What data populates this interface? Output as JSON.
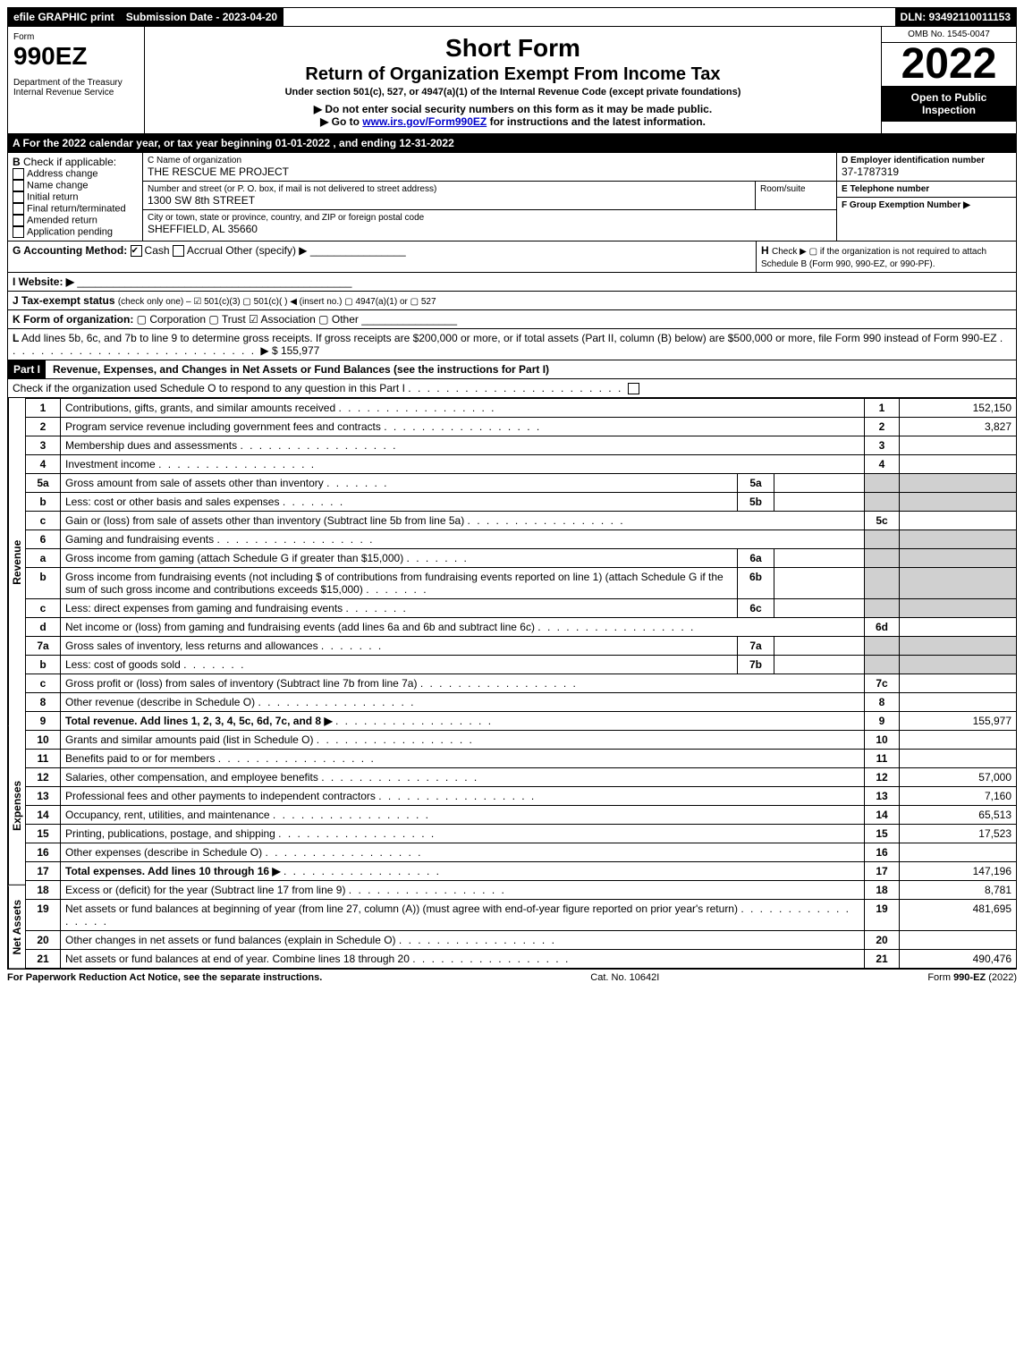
{
  "topbar": {
    "efile": "efile GRAPHIC print",
    "submission_label": "Submission Date - 2023-04-20",
    "dln": "DLN: 93492110011153"
  },
  "header": {
    "form_label": "Form",
    "form_no": "990EZ",
    "dept": "Department of the Treasury",
    "irs": "Internal Revenue Service",
    "short_form": "Short Form",
    "title": "Return of Organization Exempt From Income Tax",
    "subtitle": "Under section 501(c), 527, or 4947(a)(1) of the Internal Revenue Code (except private foundations)",
    "warn": "▶ Do not enter social security numbers on this form as it may be made public.",
    "goto": "▶ Go to www.irs.gov/Form990EZ for instructions and the latest information.",
    "goto_link": "www.irs.gov/Form990EZ",
    "omb": "OMB No. 1545-0047",
    "year": "2022",
    "open": "Open to Public Inspection"
  },
  "sectionA": {
    "text": "A  For the 2022 calendar year, or tax year beginning 01-01-2022 , and ending 12-31-2022"
  },
  "sectionB": {
    "label": "B",
    "check_if": "Check if applicable:",
    "items": [
      "Address change",
      "Name change",
      "Initial return",
      "Final return/terminated",
      "Amended return",
      "Application pending"
    ]
  },
  "sectionC": {
    "label_name": "C Name of organization",
    "name": "THE RESCUE ME PROJECT",
    "label_addr": "Number and street (or P. O. box, if mail is not delivered to street address)",
    "addr": "1300 SW 8th STREET",
    "room_label": "Room/suite",
    "label_city": "City or town, state or province, country, and ZIP or foreign postal code",
    "city": "SHEFFIELD, AL  35660"
  },
  "sectionD": {
    "label": "D Employer identification number",
    "val": "37-1787319"
  },
  "sectionE": {
    "label": "E Telephone number",
    "val": ""
  },
  "sectionF": {
    "label": "F Group Exemption Number  ▶",
    "val": ""
  },
  "sectionG": {
    "label": "G Accounting Method:",
    "cash": "Cash",
    "accrual": "Accrual",
    "other": "Other (specify) ▶"
  },
  "sectionH": {
    "label": "H",
    "text": "Check ▶  ▢  if the organization is not required to attach Schedule B (Form 990, 990-EZ, or 990-PF)."
  },
  "sectionI": {
    "label": "I Website: ▶",
    "val": ""
  },
  "sectionJ": {
    "label": "J Tax-exempt status",
    "text": "(check only one) – ☑ 501(c)(3) ▢ 501(c)(  ) ◀ (insert no.) ▢ 4947(a)(1) or ▢ 527"
  },
  "sectionK": {
    "label": "K Form of organization:",
    "text": "▢ Corporation  ▢ Trust  ☑ Association  ▢ Other"
  },
  "sectionL": {
    "label": "L",
    "text": "Add lines 5b, 6c, and 7b to line 9 to determine gross receipts. If gross receipts are $200,000 or more, or if total assets (Part II, column (B) below) are $500,000 or more, file Form 990 instead of Form 990-EZ",
    "amount": "▶ $ 155,977"
  },
  "part1": {
    "title": "Part I",
    "heading": "Revenue, Expenses, and Changes in Net Assets or Fund Balances (see the instructions for Part I)",
    "check_line": "Check if the organization used Schedule O to respond to any question in this Part I",
    "checked": "▢"
  },
  "sections": {
    "revenue_label": "Revenue",
    "expenses_label": "Expenses",
    "netassets_label": "Net Assets"
  },
  "lines": [
    {
      "n": "1",
      "desc": "Contributions, gifts, grants, and similar amounts received",
      "rn": "1",
      "amt": "152,150",
      "group": "rev"
    },
    {
      "n": "2",
      "desc": "Program service revenue including government fees and contracts",
      "rn": "2",
      "amt": "3,827",
      "group": "rev"
    },
    {
      "n": "3",
      "desc": "Membership dues and assessments",
      "rn": "3",
      "amt": "",
      "group": "rev"
    },
    {
      "n": "4",
      "desc": "Investment income",
      "rn": "4",
      "amt": "",
      "group": "rev"
    },
    {
      "n": "5a",
      "desc": "Gross amount from sale of assets other than inventory",
      "sub": "5a",
      "subamt": "",
      "group": "rev",
      "shade_right": true
    },
    {
      "n": "b",
      "desc": "Less: cost or other basis and sales expenses",
      "sub": "5b",
      "subamt": "",
      "group": "rev",
      "shade_right": true
    },
    {
      "n": "c",
      "desc": "Gain or (loss) from sale of assets other than inventory (Subtract line 5b from line 5a)",
      "rn": "5c",
      "amt": "",
      "group": "rev"
    },
    {
      "n": "6",
      "desc": "Gaming and fundraising events",
      "group": "rev",
      "shade_right": true,
      "no_rn": true
    },
    {
      "n": "a",
      "desc": "Gross income from gaming (attach Schedule G if greater than $15,000)",
      "sub": "6a",
      "subamt": "",
      "group": "rev",
      "shade_right": true
    },
    {
      "n": "b",
      "desc": "Gross income from fundraising events (not including $                     of contributions from fundraising events reported on line 1) (attach Schedule G if the sum of such gross income and contributions exceeds $15,000)",
      "sub": "6b",
      "subamt": "",
      "group": "rev",
      "shade_right": true
    },
    {
      "n": "c",
      "desc": "Less: direct expenses from gaming and fundraising events",
      "sub": "6c",
      "subamt": "",
      "group": "rev",
      "shade_right": true
    },
    {
      "n": "d",
      "desc": "Net income or (loss) from gaming and fundraising events (add lines 6a and 6b and subtract line 6c)",
      "rn": "6d",
      "amt": "",
      "group": "rev"
    },
    {
      "n": "7a",
      "desc": "Gross sales of inventory, less returns and allowances",
      "sub": "7a",
      "subamt": "",
      "group": "rev",
      "shade_right": true
    },
    {
      "n": "b",
      "desc": "Less: cost of goods sold",
      "sub": "7b",
      "subamt": "",
      "group": "rev",
      "shade_right": true
    },
    {
      "n": "c",
      "desc": "Gross profit or (loss) from sales of inventory (Subtract line 7b from line 7a)",
      "rn": "7c",
      "amt": "",
      "group": "rev"
    },
    {
      "n": "8",
      "desc": "Other revenue (describe in Schedule O)",
      "rn": "8",
      "amt": "",
      "group": "rev"
    },
    {
      "n": "9",
      "desc": "Total revenue. Add lines 1, 2, 3, 4, 5c, 6d, 7c, and 8   ▶",
      "rn": "9",
      "amt": "155,977",
      "group": "rev",
      "bold": true
    },
    {
      "n": "10",
      "desc": "Grants and similar amounts paid (list in Schedule O)",
      "rn": "10",
      "amt": "",
      "group": "exp"
    },
    {
      "n": "11",
      "desc": "Benefits paid to or for members",
      "rn": "11",
      "amt": "",
      "group": "exp"
    },
    {
      "n": "12",
      "desc": "Salaries, other compensation, and employee benefits",
      "rn": "12",
      "amt": "57,000",
      "group": "exp"
    },
    {
      "n": "13",
      "desc": "Professional fees and other payments to independent contractors",
      "rn": "13",
      "amt": "7,160",
      "group": "exp"
    },
    {
      "n": "14",
      "desc": "Occupancy, rent, utilities, and maintenance",
      "rn": "14",
      "amt": "65,513",
      "group": "exp"
    },
    {
      "n": "15",
      "desc": "Printing, publications, postage, and shipping",
      "rn": "15",
      "amt": "17,523",
      "group": "exp"
    },
    {
      "n": "16",
      "desc": "Other expenses (describe in Schedule O)",
      "rn": "16",
      "amt": "",
      "group": "exp"
    },
    {
      "n": "17",
      "desc": "Total expenses. Add lines 10 through 16   ▶",
      "rn": "17",
      "amt": "147,196",
      "group": "exp",
      "bold": true
    },
    {
      "n": "18",
      "desc": "Excess or (deficit) for the year (Subtract line 17 from line 9)",
      "rn": "18",
      "amt": "8,781",
      "group": "na"
    },
    {
      "n": "19",
      "desc": "Net assets or fund balances at beginning of year (from line 27, column (A)) (must agree with end-of-year figure reported on prior year's return)",
      "rn": "19",
      "amt": "481,695",
      "group": "na"
    },
    {
      "n": "20",
      "desc": "Other changes in net assets or fund balances (explain in Schedule O)",
      "rn": "20",
      "amt": "",
      "group": "na"
    },
    {
      "n": "21",
      "desc": "Net assets or fund balances at end of year. Combine lines 18 through 20",
      "rn": "21",
      "amt": "490,476",
      "group": "na"
    }
  ],
  "footer": {
    "left": "For Paperwork Reduction Act Notice, see the separate instructions.",
    "mid": "Cat. No. 10642I",
    "right": "Form 990-EZ (2022)"
  }
}
